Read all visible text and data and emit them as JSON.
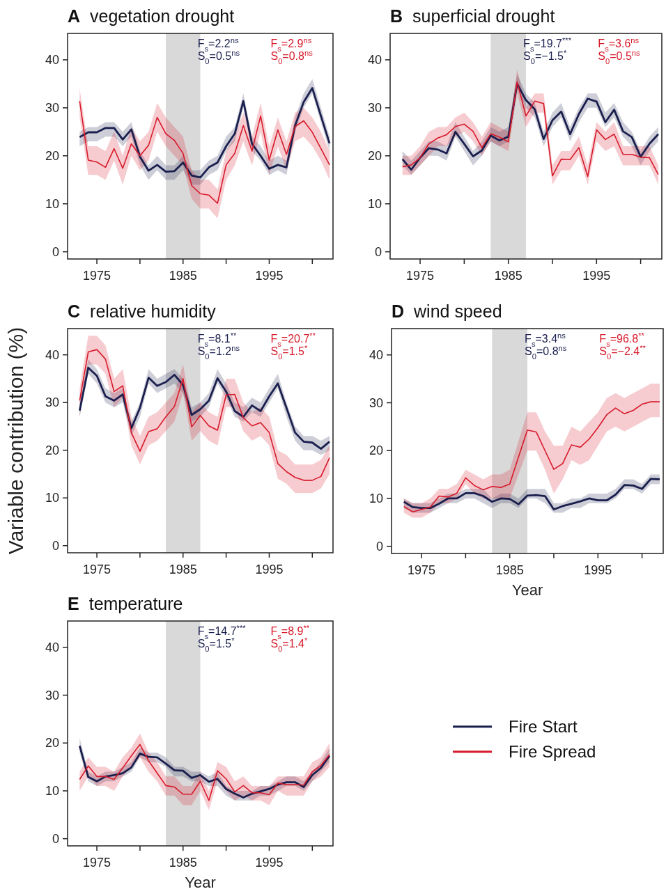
{
  "chart_data": [
    {
      "type": "line",
      "title": "A vegetation drought",
      "x": [
        1973,
        1974,
        1975,
        1976,
        1977,
        1978,
        1979,
        1980,
        1981,
        1982,
        1983,
        1984,
        1985,
        1986,
        1987,
        1988,
        1989,
        1990,
        1991,
        1992,
        1993,
        1994,
        1995,
        1996,
        1997,
        1998,
        1999,
        2000,
        2001,
        2002
      ],
      "xlim": [
        1971.6,
        2002.4
      ],
      "ylim": [
        -1.5,
        45.5
      ],
      "xticks": [
        1975,
        {
          "value": 1980,
          "label": null
        },
        1985,
        {
          "value": 1990,
          "label": null
        },
        1995,
        {
          "value": 2000,
          "label": null
        }
      ],
      "yticks": [
        0,
        10,
        20,
        30,
        40
      ],
      "bands": [
        {
          "axis": "x",
          "from": 1983,
          "to": 1987,
          "color": "#d9d9d9"
        }
      ],
      "annotations": [
        "F$_{s}$=2.2$^{ns}$",
        "S$_{0}$=0.5$^{ns}$",
        "F$_{s}$=2.9$^{ns}$",
        "S$_{0}$=0.8$^{ns}$"
      ],
      "series": [
        {
          "color": "#1a1f4e",
          "values": [
            23.9,
            24.9,
            24.9,
            25.8,
            25.8,
            23.4,
            25.5,
            19.8,
            16.9,
            18.1,
            16.7,
            16.8,
            18.6,
            15.9,
            15.5,
            17.6,
            18.6,
            22,
            24.6,
            31.4,
            22.5,
            20,
            17.3,
            18.1,
            17.6,
            26.3,
            31.2,
            34.1,
            28.3,
            22.6
          ],
          "lower": [
            22,
            23,
            23,
            24,
            24,
            22,
            24,
            18,
            15,
            17,
            15,
            15,
            17,
            14,
            14,
            16,
            17,
            21,
            23,
            30,
            21,
            19,
            16,
            17,
            16,
            25,
            30,
            33,
            27,
            21
          ],
          "upper": [
            25,
            26,
            26,
            27,
            27,
            25,
            27,
            21,
            18,
            20,
            18,
            18,
            20,
            17,
            17,
            19,
            20,
            24,
            26,
            33,
            24,
            22,
            19,
            20,
            19,
            28,
            33,
            36,
            30,
            24
          ]
        },
        {
          "color": "#d7192a",
          "values": [
            31.4,
            19.1,
            18.7,
            17.6,
            21.5,
            17.4,
            22.5,
            20,
            22.2,
            28,
            24.6,
            23.2,
            20.5,
            13.8,
            12.1,
            11.8,
            10.1,
            18.1,
            20.5,
            26.3,
            21,
            28.3,
            19.1,
            25.4,
            20.3,
            26.1,
            27.3,
            24.9,
            21.5,
            18.1
          ],
          "lower": [
            28,
            16,
            16,
            15,
            19,
            14,
            20,
            17,
            19,
            25,
            22,
            20,
            18,
            11,
            9,
            9,
            7,
            15,
            18,
            23,
            18,
            25,
            16,
            22,
            17,
            23,
            24,
            22,
            19,
            15
          ],
          "upper": [
            34,
            22,
            22,
            21,
            25,
            20,
            26,
            23,
            25,
            31,
            28,
            26,
            24,
            17,
            15,
            15,
            13,
            21,
            24,
            29,
            24,
            31,
            22,
            28,
            23,
            29,
            30,
            28,
            25,
            21
          ]
        }
      ]
    },
    {
      "type": "line",
      "title": "B superficial drought",
      "x": [
        1973,
        1974,
        1975,
        1976,
        1977,
        1978,
        1979,
        1980,
        1981,
        1982,
        1983,
        1984,
        1985,
        1986,
        1987,
        1988,
        1989,
        1990,
        1991,
        1992,
        1993,
        1994,
        1995,
        1996,
        1997,
        1998,
        1999,
        2000,
        2001,
        2002
      ],
      "xlim": [
        1971.6,
        2002.4
      ],
      "ylim": [
        -1.5,
        45.5
      ],
      "xticks": [
        1975,
        {
          "value": 1980,
          "label": null
        },
        1985,
        {
          "value": 1990,
          "label": null
        },
        1995,
        {
          "value": 2000,
          "label": null
        }
      ],
      "yticks": [
        0,
        10,
        20,
        30,
        40
      ],
      "bands": [
        {
          "axis": "x",
          "from": 1983,
          "to": 1987,
          "color": "#d9d9d9"
        }
      ],
      "annotations": [
        "F$_{s}$=19.7$^{***}$",
        "S$_{0}$=−1.5$^{*}$",
        "F$_{s}$=3.6$^{ns}$",
        "S$_{0}$=0.5$^{ns}$"
      ],
      "series": [
        {
          "color": "#1a1f4e",
          "values": [
            19.3,
            17.1,
            19.6,
            21.6,
            21.3,
            20.5,
            25,
            22.5,
            19.9,
            21.1,
            24.2,
            23.2,
            24,
            35,
            31.6,
            29.7,
            23.5,
            27.4,
            29.2,
            24.5,
            28.7,
            31.9,
            31.3,
            27,
            29.6,
            25.1,
            23.9,
            19.8,
            22.5,
            24.5
          ],
          "lower": [
            18,
            16,
            18,
            20,
            20,
            19,
            24,
            21,
            18,
            20,
            23,
            22,
            23,
            34,
            30,
            28,
            22,
            26,
            28,
            23,
            27,
            30,
            30,
            26,
            28,
            24,
            22,
            18,
            21,
            23
          ],
          "upper": [
            21,
            19,
            21,
            23,
            23,
            22,
            27,
            24,
            21,
            23,
            26,
            25,
            26,
            37,
            33,
            31,
            25,
            29,
            31,
            26,
            30,
            33,
            33,
            29,
            31,
            27,
            25,
            21,
            24,
            26
          ]
        },
        {
          "color": "#d7192a",
          "values": [
            17.7,
            18.1,
            19.6,
            22.5,
            23.7,
            24.4,
            26.1,
            26.6,
            25.1,
            21.7,
            24.6,
            23.9,
            22.9,
            35.4,
            28.3,
            31.4,
            30.9,
            15.8,
            19.3,
            19.2,
            21.7,
            15.7,
            25.4,
            23.4,
            24.5,
            20.3,
            20.3,
            19.7,
            19.6,
            16.1
          ],
          "lower": [
            16,
            16,
            18,
            20,
            22,
            22,
            24,
            25,
            23,
            20,
            23,
            22,
            21,
            33,
            26,
            29,
            29,
            14,
            17,
            17,
            20,
            14,
            23,
            21,
            22,
            18,
            18,
            18,
            18,
            14
          ],
          "upper": [
            20,
            20,
            22,
            25,
            26,
            26,
            28,
            29,
            27,
            24,
            27,
            26,
            25,
            38,
            30,
            33,
            33,
            18,
            21,
            21,
            24,
            18,
            27,
            25,
            27,
            22,
            22,
            22,
            22,
            18
          ]
        }
      ]
    },
    {
      "type": "line",
      "title": "C relative humidity",
      "ylabel": "Variable contribution (%)",
      "x": [
        1973,
        1974,
        1975,
        1976,
        1977,
        1978,
        1979,
        1980,
        1981,
        1982,
        1983,
        1984,
        1985,
        1986,
        1987,
        1988,
        1989,
        1990,
        1991,
        1992,
        1993,
        1994,
        1995,
        1996,
        1997,
        1998,
        1999,
        2000,
        2001,
        2002
      ],
      "xlim": [
        1971.6,
        2002.4
      ],
      "ylim": [
        -1.5,
        45.5
      ],
      "xticks": [
        1975,
        {
          "value": 1980,
          "label": null
        },
        1985,
        {
          "value": 1990,
          "label": null
        },
        1995,
        {
          "value": 2000,
          "label": null
        }
      ],
      "yticks": [
        0,
        10,
        20,
        30,
        40
      ],
      "bands": [
        {
          "axis": "x",
          "from": 1983,
          "to": 1987,
          "color": "#d9d9d9"
        }
      ],
      "annotations": [
        "F$_{s}$=8.1$^{**}$",
        "S$_{0}$=1.2$^{ns}$",
        "F$_{s}$=20.7$^{**}$",
        "S$_{0}$=1.5$^{*}$"
      ],
      "series": [
        {
          "color": "#1a1f4e",
          "values": [
            28.3,
            37.3,
            35.6,
            31.3,
            30.4,
            31.7,
            24.6,
            28.9,
            35.2,
            33.5,
            34.3,
            35.8,
            33.7,
            27.4,
            28.6,
            30.4,
            35.1,
            32.3,
            28.2,
            27,
            29.4,
            28.2,
            31.3,
            34,
            28.9,
            23.7,
            21.8,
            21.6,
            20.3,
            21.8
          ],
          "lower": [
            27,
            36,
            34,
            30,
            29,
            30,
            23,
            27,
            34,
            32,
            33,
            34,
            32,
            26,
            27,
            29,
            34,
            31,
            27,
            26,
            28,
            27,
            30,
            33,
            27,
            22,
            20,
            20,
            19,
            20
          ],
          "upper": [
            30,
            39,
            37,
            33,
            32,
            33,
            26,
            30,
            37,
            35,
            36,
            37,
            35,
            29,
            30,
            32,
            37,
            34,
            30,
            29,
            31,
            30,
            33,
            36,
            30,
            25,
            23,
            23,
            22,
            23
          ]
        },
        {
          "color": "#d7192a",
          "values": [
            30.4,
            40.6,
            41.1,
            39.1,
            32.3,
            33.5,
            23.7,
            19.8,
            23.9,
            24.5,
            27,
            29.2,
            35,
            24.9,
            27.3,
            25.1,
            24.2,
            31.6,
            31.7,
            26.8,
            25.1,
            25.8,
            23.7,
            17.2,
            15.5,
            14.3,
            13.7,
            13.7,
            14.5,
            18.4
          ],
          "lower": [
            27,
            38,
            38,
            36,
            29,
            31,
            21,
            17,
            21,
            22,
            24,
            26,
            32,
            22,
            24,
            22,
            21,
            29,
            29,
            24,
            22,
            23,
            21,
            14,
            13,
            11,
            11,
            11,
            12,
            15
          ],
          "upper": [
            33,
            44,
            44,
            42,
            35,
            37,
            27,
            23,
            27,
            28,
            30,
            32,
            38,
            28,
            30,
            28,
            27,
            35,
            35,
            30,
            28,
            29,
            27,
            20,
            19,
            17,
            17,
            17,
            18,
            21
          ]
        }
      ]
    },
    {
      "type": "line",
      "title": "D wind speed",
      "xlabel": "Year",
      "x": [
        1973,
        1974,
        1975,
        1976,
        1977,
        1978,
        1979,
        1980,
        1981,
        1982,
        1983,
        1984,
        1985,
        1986,
        1987,
        1988,
        1989,
        1990,
        1991,
        1992,
        1993,
        1994,
        1995,
        1996,
        1997,
        1998,
        1999,
        2000,
        2001,
        2002
      ],
      "xlim": [
        1971.6,
        2002.4
      ],
      "ylim": [
        -1.5,
        45.5
      ],
      "xticks": [
        1975,
        {
          "value": 1980,
          "label": null
        },
        1985,
        {
          "value": 1990,
          "label": null
        },
        1995,
        {
          "value": 2000,
          "label": null
        }
      ],
      "yticks": [
        0,
        10,
        20,
        30,
        40
      ],
      "bands": [
        {
          "axis": "x",
          "from": 1983,
          "to": 1987,
          "color": "#d9d9d9"
        }
      ],
      "annotations": [
        "F$_{s}$=3.4$^{ns}$",
        "S$_{0}$=0.8$^{ns}$",
        "F$_{s}$=96.8$^{**}$",
        "S$_{0}$=−2.4$^{**}$"
      ],
      "series": [
        {
          "color": "#1a1f4e",
          "values": [
            9.3,
            8.2,
            8,
            8,
            8.9,
            10,
            10,
            11.1,
            11.1,
            10.5,
            9.3,
            10,
            9.9,
            8.8,
            10.6,
            10.7,
            10.5,
            7.7,
            8.4,
            8.9,
            9.4,
            10,
            9.6,
            9.6,
            10.8,
            12.8,
            12.7,
            12,
            14.1,
            14
          ],
          "lower": [
            8,
            7,
            7,
            7,
            8,
            9,
            9,
            10,
            10,
            9,
            8,
            9,
            9,
            8,
            10,
            10,
            9,
            7,
            7,
            8,
            8,
            9,
            9,
            9,
            10,
            12,
            12,
            11,
            13,
            13
          ],
          "upper": [
            10,
            9,
            9,
            9,
            10,
            11,
            11,
            12,
            12,
            12,
            10,
            11,
            11,
            10,
            12,
            12,
            12,
            9,
            9,
            10,
            10,
            11,
            11,
            11,
            12,
            14,
            14,
            13,
            15,
            15
          ]
        },
        {
          "color": "#d7192a",
          "values": [
            8.3,
            7.2,
            7.7,
            8.2,
            10.5,
            10.3,
            11.1,
            14.3,
            12.7,
            11.8,
            12.5,
            12.3,
            13,
            18.7,
            24.3,
            23.9,
            20,
            16.1,
            17.3,
            21.2,
            20.7,
            22.4,
            24.8,
            27.5,
            28.9,
            27.7,
            28.4,
            29.7,
            30.2,
            30.2
          ],
          "lower": [
            7,
            6,
            6,
            7,
            9,
            9,
            10,
            13,
            11,
            10,
            10,
            10,
            10,
            15,
            20,
            20,
            16,
            11,
            14,
            18,
            17,
            18,
            21,
            24,
            25,
            24,
            25,
            26,
            27,
            27
          ],
          "upper": [
            10,
            9,
            9,
            10,
            12,
            12,
            13,
            16,
            15,
            14,
            15,
            15,
            16,
            22,
            28,
            28,
            24,
            21,
            21,
            25,
            24,
            26,
            28,
            31,
            32,
            31,
            32,
            33,
            34,
            34
          ]
        }
      ]
    },
    {
      "type": "line",
      "title": "E temperature",
      "xlabel": "Year",
      "legend": "right",
      "x": [
        1973,
        1974,
        1975,
        1976,
        1977,
        1978,
        1979,
        1980,
        1981,
        1982,
        1983,
        1984,
        1985,
        1986,
        1987,
        1988,
        1989,
        1990,
        1991,
        1992,
        1993,
        1994,
        1995,
        1996,
        1997,
        1998,
        1999,
        2000,
        2001,
        2002
      ],
      "xlim": [
        1971.6,
        2002.4
      ],
      "ylim": [
        -1.5,
        45.5
      ],
      "xticks": [
        1975,
        {
          "value": 1980,
          "label": null
        },
        1985,
        {
          "value": 1990,
          "label": null
        },
        1995,
        {
          "value": 2000,
          "label": null
        }
      ],
      "yticks": [
        0,
        10,
        20,
        30,
        40
      ],
      "bands": [
        {
          "axis": "x",
          "from": 1983,
          "to": 1987,
          "color": "#d9d9d9"
        }
      ],
      "annotations": [
        "F$_{s}$=14.7$^{***}$",
        "S$_{0}$=1.5$^{*}$",
        "F$_{s}$=8.9$^{**}$",
        "S$_{0}$=1.4$^{*}$"
      ],
      "series": [
        {
          "name": "Fire Start",
          "color": "#1a1f4e",
          "values": [
            19.4,
            12.9,
            12,
            13,
            13.3,
            13.7,
            14.9,
            17.8,
            17.1,
            17,
            15.7,
            14.3,
            14.2,
            12.7,
            13.3,
            11.9,
            12.5,
            10.4,
            9.4,
            8.6,
            9.4,
            9.9,
            10.4,
            11.3,
            11.8,
            11.8,
            10.8,
            13.3,
            14.8,
            17.3
          ],
          "lower": [
            18,
            12,
            11,
            12,
            12,
            13,
            14,
            17,
            16,
            16,
            15,
            13,
            13,
            12,
            12,
            11,
            11,
            9,
            8,
            8,
            8,
            9,
            9,
            10,
            11,
            11,
            10,
            12,
            14,
            16
          ],
          "upper": [
            21,
            14,
            13,
            14,
            14,
            15,
            16,
            19,
            18,
            18,
            17,
            15,
            15,
            14,
            14,
            13,
            14,
            11,
            10,
            10,
            10,
            11,
            11,
            12,
            13,
            13,
            12,
            14,
            16,
            19
          ]
        },
        {
          "name": "Fire Spread",
          "color": "#d7192a",
          "values": [
            12.4,
            15.2,
            13,
            13,
            12.4,
            14.8,
            17.3,
            19.7,
            16.3,
            13.7,
            11.1,
            10.8,
            9.3,
            9.3,
            12,
            8,
            14.2,
            12.5,
            9.8,
            11.1,
            9.6,
            9.6,
            9.2,
            11.6,
            11.3,
            11.3,
            11.2,
            14,
            15.3,
            17.6
          ],
          "lower": [
            10,
            13,
            11,
            11,
            10,
            13,
            15,
            17,
            14,
            12,
            9,
            9,
            7,
            7,
            10,
            6,
            12,
            10,
            8,
            9,
            8,
            8,
            7,
            10,
            9,
            9,
            9,
            12,
            13,
            15
          ],
          "upper": [
            14,
            17,
            15,
            15,
            14,
            17,
            19,
            22,
            18,
            16,
            13,
            13,
            11,
            11,
            14,
            10,
            16,
            15,
            12,
            13,
            11,
            11,
            11,
            13,
            13,
            13,
            13,
            16,
            17,
            20
          ]
        }
      ]
    }
  ]
}
